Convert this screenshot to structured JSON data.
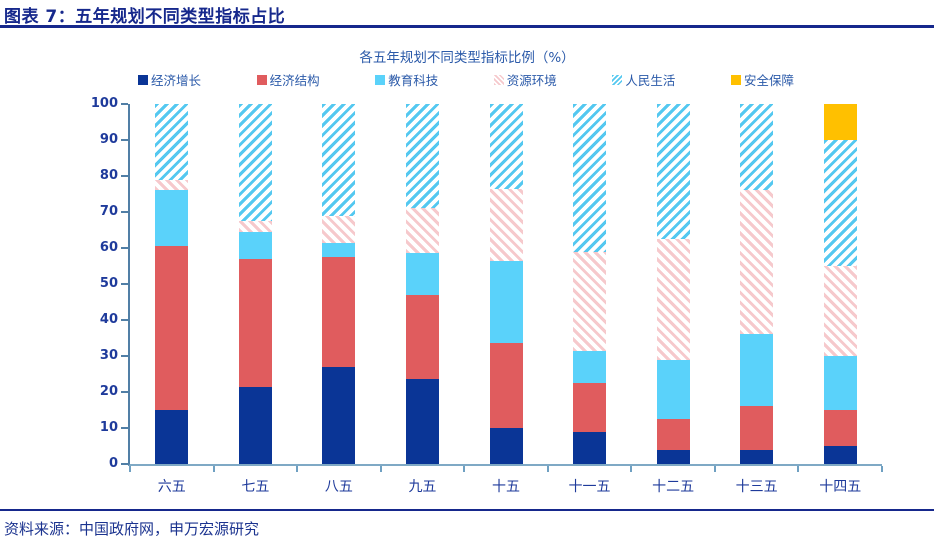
{
  "header": {
    "title": "图表 7：五年规划不同类型指标占比"
  },
  "footer": {
    "source": "资料来源：中国政府网，申万宏源研究"
  },
  "chart_data": {
    "type": "bar",
    "stacked": true,
    "title": "各五年规划不同类型指标比例（%）",
    "categories": [
      "六五",
      "七五",
      "八五",
      "九五",
      "十五",
      "十一五",
      "十二五",
      "十三五",
      "十四五"
    ],
    "series": [
      {
        "name": "经济增长",
        "pattern": "solid",
        "color": "#0A3596",
        "values": [
          15,
          21.5,
          27,
          23.5,
          10,
          9,
          4,
          4,
          5
        ]
      },
      {
        "name": "经济结构",
        "pattern": "solid",
        "color": "#E05C5E",
        "values": [
          45.5,
          35.5,
          30.5,
          23.5,
          23.5,
          13.5,
          8.5,
          12,
          10
        ]
      },
      {
        "name": "教育科技",
        "pattern": "solid",
        "color": "#5AD2FA",
        "values": [
          15.5,
          7.5,
          4,
          11.5,
          23,
          9,
          16.5,
          20,
          15
        ]
      },
      {
        "name": "资源环境",
        "pattern": "hatch-down",
        "color": "#F6C9CC",
        "values": [
          3,
          3,
          7.5,
          12.5,
          20,
          27.5,
          33.5,
          40,
          25
        ]
      },
      {
        "name": "人民生活",
        "pattern": "hatch-up",
        "color": "#54C8F0",
        "values": [
          21,
          32.5,
          31,
          29,
          23.5,
          41,
          37.5,
          24,
          35
        ]
      },
      {
        "name": "安全保障",
        "pattern": "solid",
        "color": "#FFC000",
        "values": [
          0,
          0,
          0,
          0,
          0,
          0,
          0,
          0,
          10
        ]
      }
    ],
    "ylim": [
      0,
      100
    ],
    "yticks": [
      0,
      10,
      20,
      30,
      40,
      50,
      60,
      70,
      80,
      90,
      100
    ],
    "legend_position": "top",
    "grid": false,
    "colors": {
      "axis": "#517FA6",
      "tick_label": "#1E3A9B",
      "chart_title": "#2B5AA9",
      "page_title": "#16288C"
    }
  }
}
